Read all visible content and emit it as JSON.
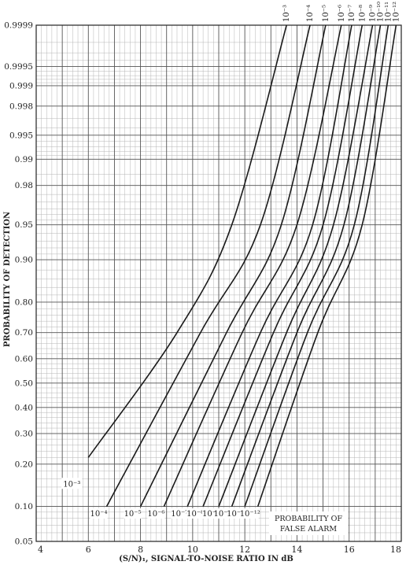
{
  "chart_data": {
    "type": "line",
    "xlabel": "(S/N)₁, SIGNAL-TO-NOISE RATIO IN dB",
    "ylabel": "PROBABILITY OF DETECTION",
    "xlim": [
      4,
      18
    ],
    "ylim": [
      0.05,
      0.9999
    ],
    "y_scale": "normal-probability",
    "grid": true,
    "x_ticks": [
      "4",
      "6",
      "8",
      "10",
      "12",
      "14",
      "16",
      "18"
    ],
    "x_tick_values": [
      4,
      6,
      8,
      10,
      12,
      14,
      16,
      18
    ],
    "y_ticks": [
      "0.05",
      "0.10",
      "0.20",
      "0.30",
      "0.40",
      "0.50",
      "0.60",
      "0.70",
      "0.80",
      "0.90",
      "0.95",
      "0.98",
      "0.99",
      "0.995",
      "0.998",
      "0.999",
      "0.9995",
      "0.9999"
    ],
    "y_tick_values": [
      0.05,
      0.1,
      0.2,
      0.3,
      0.4,
      0.5,
      0.6,
      0.7,
      0.8,
      0.9,
      0.95,
      0.98,
      0.99,
      0.995,
      0.998,
      0.999,
      0.9995,
      0.9999
    ],
    "annotation": [
      "PROBABILITY OF",
      "FALSE ALARM"
    ],
    "series": [
      {
        "label": "10⁻³",
        "x": [
          6.0,
          9.4,
          11.5,
          13.6
        ],
        "y": [
          0.22,
          0.7,
          0.95,
          0.9999
        ]
      },
      {
        "label": "10⁻⁴",
        "x": [
          6.7,
          10.3,
          12.6,
          14.5
        ],
        "y": [
          0.1,
          0.7,
          0.95,
          0.9999
        ]
      },
      {
        "label": "10⁻⁵",
        "x": [
          8.0,
          11.3,
          13.4,
          15.1
        ],
        "y": [
          0.1,
          0.7,
          0.95,
          0.9999
        ]
      },
      {
        "label": "10⁻⁶",
        "x": [
          8.9,
          11.9,
          14.0,
          15.7
        ],
        "y": [
          0.1,
          0.7,
          0.95,
          0.9999
        ]
      },
      {
        "label": "10⁻⁷",
        "x": [
          9.8,
          12.6,
          14.6,
          16.1
        ],
        "y": [
          0.1,
          0.7,
          0.95,
          0.9999
        ]
      },
      {
        "label": "10⁻⁸",
        "x": [
          10.4,
          13.1,
          15.0,
          16.5
        ],
        "y": [
          0.1,
          0.7,
          0.95,
          0.9999
        ]
      },
      {
        "label": "10⁻⁹",
        "x": [
          11.0,
          13.6,
          15.4,
          16.9
        ],
        "y": [
          0.1,
          0.7,
          0.95,
          0.9999
        ]
      },
      {
        "label": "10⁻¹⁰",
        "x": [
          11.5,
          14.0,
          15.8,
          17.2
        ],
        "y": [
          0.1,
          0.7,
          0.95,
          0.9999
        ]
      },
      {
        "label": "10⁻¹¹",
        "x": [
          12.0,
          14.4,
          16.2,
          17.5
        ],
        "y": [
          0.1,
          0.7,
          0.95,
          0.9999
        ]
      },
      {
        "label": "10⁻¹²",
        "x": [
          12.5,
          14.8,
          16.5,
          17.8
        ],
        "y": [
          0.1,
          0.7,
          0.95,
          0.9999
        ]
      }
    ]
  }
}
